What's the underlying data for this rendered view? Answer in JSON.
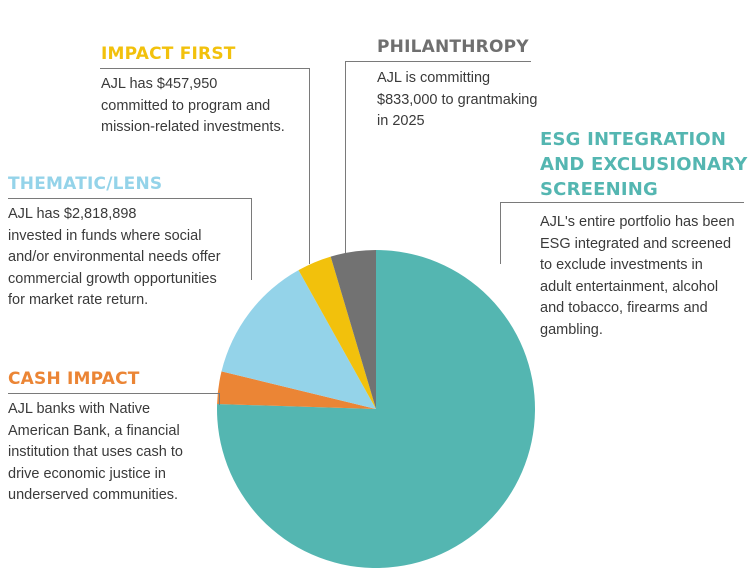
{
  "colors": {
    "esg": "#54b6b1",
    "cash": "#eb8535",
    "thematic": "#94d3e9",
    "impact_first": "#f2c10c",
    "philanthropy": "#727272"
  },
  "chart_data": {
    "type": "pie",
    "slices": [
      {
        "label": "ESG INTEGRATION AND EXCLUSIONARY SCREENING",
        "value": 75.5,
        "color": "#54b6b1"
      },
      {
        "label": "CASH IMPACT",
        "value": 3.3,
        "color": "#eb8535"
      },
      {
        "label": "THEMATIC/LENS",
        "value": 13.1,
        "color": "#94d3e9"
      },
      {
        "label": "IMPACT FIRST",
        "value": 3.5,
        "color": "#f2c10c"
      },
      {
        "label": "PHILANTHROPY",
        "value": 4.6,
        "color": "#727272"
      }
    ]
  },
  "callouts": {
    "impact_first": {
      "title": "IMPACT FIRST",
      "lines": [
        "AJL has $457,950",
        "committed to program and",
        "mission-related investments."
      ]
    },
    "philanthropy": {
      "title": "PHILANTHROPY",
      "lines": [
        "AJL is committing",
        "$833,000 to grantmaking",
        "in 2025"
      ]
    },
    "esg": {
      "title_lines": [
        "ESG INTEGRATION",
        "AND EXCLUSIONARY",
        "SCREENING"
      ],
      "lines": [
        "AJL's entire portfolio has been",
        "ESG integrated and screened",
        "to exclude investments in",
        "adult entertainment, alcohol",
        "and tobacco, firearms and",
        "gambling."
      ]
    },
    "thematic": {
      "title": "THEMATIC/LENS",
      "lines": [
        "AJL has $2,818,898",
        "invested in funds where social",
        "and/or environmental needs offer",
        "commercial growth opportunities",
        "for market rate return."
      ]
    },
    "cash": {
      "title": "CASH IMPACT",
      "lines": [
        "AJL banks with Native",
        "American Bank, a financial",
        "institution that uses cash to",
        "drive economic justice in",
        "underserved communities."
      ]
    }
  }
}
